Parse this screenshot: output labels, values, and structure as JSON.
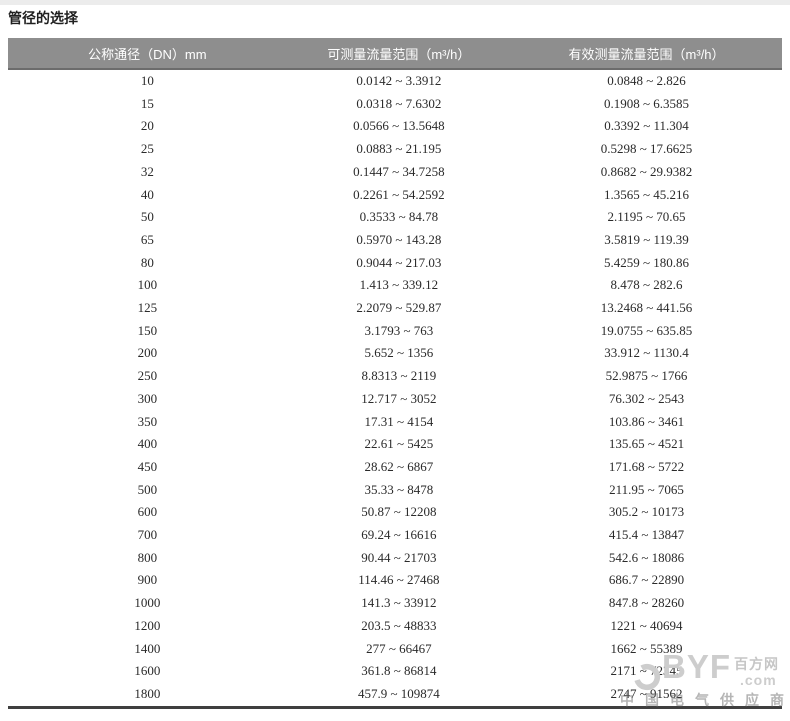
{
  "page": {
    "title": "管径的选择"
  },
  "table": {
    "headers": [
      "公称通径（DN）mm",
      "可测量流量范围（m³/h）",
      "有效测量流量范围（m³/h）"
    ],
    "rows": [
      {
        "dn": "10",
        "measurable": "0.0142 ~ 3.3912",
        "effective": "0.0848 ~ 2.826"
      },
      {
        "dn": "15",
        "measurable": "0.0318 ~ 7.6302",
        "effective": "0.1908 ~ 6.3585"
      },
      {
        "dn": "20",
        "measurable": "0.0566 ~ 13.5648",
        "effective": "0.3392 ~ 11.304"
      },
      {
        "dn": "25",
        "measurable": "0.0883 ~ 21.195",
        "effective": "0.5298 ~ 17.6625"
      },
      {
        "dn": "32",
        "measurable": "0.1447 ~ 34.7258",
        "effective": "0.8682 ~ 29.9382"
      },
      {
        "dn": "40",
        "measurable": "0.2261 ~ 54.2592",
        "effective": "1.3565 ~ 45.216"
      },
      {
        "dn": "50",
        "measurable": "0.3533 ~ 84.78",
        "effective": "2.1195 ~ 70.65"
      },
      {
        "dn": "65",
        "measurable": "0.5970 ~ 143.28",
        "effective": "3.5819 ~ 119.39"
      },
      {
        "dn": "80",
        "measurable": "0.9044 ~ 217.03",
        "effective": "5.4259 ~ 180.86"
      },
      {
        "dn": "100",
        "measurable": "1.413 ~ 339.12",
        "effective": "8.478 ~ 282.6"
      },
      {
        "dn": "125",
        "measurable": "2.2079 ~ 529.87",
        "effective": "13.2468 ~ 441.56"
      },
      {
        "dn": "150",
        "measurable": "3.1793 ~ 763",
        "effective": "19.0755 ~ 635.85"
      },
      {
        "dn": "200",
        "measurable": "5.652 ~ 1356",
        "effective": "33.912 ~ 1130.4"
      },
      {
        "dn": "250",
        "measurable": "8.8313 ~ 2119",
        "effective": "52.9875 ~ 1766"
      },
      {
        "dn": "300",
        "measurable": "12.717 ~ 3052",
        "effective": "76.302 ~ 2543"
      },
      {
        "dn": "350",
        "measurable": "17.31 ~ 4154",
        "effective": "103.86 ~ 3461"
      },
      {
        "dn": "400",
        "measurable": "22.61 ~ 5425",
        "effective": "135.65 ~ 4521"
      },
      {
        "dn": "450",
        "measurable": "28.62 ~ 6867",
        "effective": "171.68 ~ 5722"
      },
      {
        "dn": "500",
        "measurable": "35.33 ~ 8478",
        "effective": "211.95 ~ 7065"
      },
      {
        "dn": "600",
        "measurable": "50.87 ~ 12208",
        "effective": "305.2 ~ 10173"
      },
      {
        "dn": "700",
        "measurable": "69.24 ~ 16616",
        "effective": "415.4 ~ 13847"
      },
      {
        "dn": "800",
        "measurable": "90.44 ~ 21703",
        "effective": "542.6 ~ 18086"
      },
      {
        "dn": "900",
        "measurable": "114.46 ~ 27468",
        "effective": "686.7 ~ 22890"
      },
      {
        "dn": "1000",
        "measurable": "141.3 ~ 33912",
        "effective": "847.8 ~ 28260"
      },
      {
        "dn": "1200",
        "measurable": "203.5 ~ 48833",
        "effective": "1221 ~ 40694"
      },
      {
        "dn": "1400",
        "measurable": "277 ~ 66467",
        "effective": "1662 ~ 55389"
      },
      {
        "dn": "1600",
        "measurable": "361.8 ~ 86814",
        "effective": "2171 ~ 72345"
      },
      {
        "dn": "1800",
        "measurable": "457.9 ~ 109874",
        "effective": "2747 ~ 91562"
      }
    ]
  },
  "watermark": {
    "brand": "BYF",
    "domain_suffix": ".com",
    "site_name": "百方网",
    "tagline": "中国电气供应商"
  },
  "colors": {
    "header_bg": "#8e8e8e",
    "header_text": "#ffffff",
    "body_text": "#2a2a2a",
    "table_bottom_border": "#3f3f3f",
    "top_strip": "#ececec",
    "watermark_gray": "#cdcdcd"
  }
}
